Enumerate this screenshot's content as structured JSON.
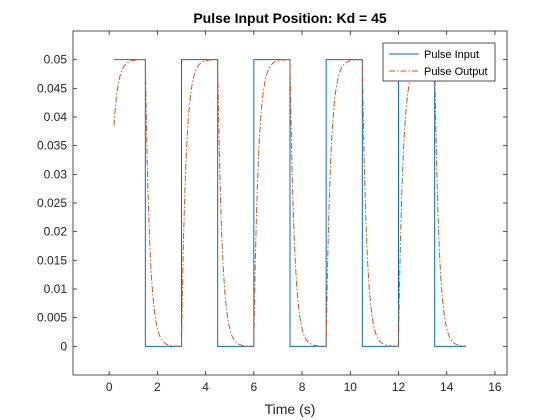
{
  "chart_data": {
    "type": "line",
    "title": "Pulse Input Position: Kd = 45",
    "xlabel": "Time (s)",
    "ylabel": "",
    "xlim": [
      -1.5,
      16.5
    ],
    "ylim": [
      -0.005,
      0.055
    ],
    "xticks": [
      "0",
      "2",
      "4",
      "6",
      "8",
      "10",
      "12",
      "14",
      "16"
    ],
    "xtick_values": [
      0,
      2,
      4,
      6,
      8,
      10,
      12,
      14,
      16
    ],
    "yticks": [
      "0",
      "0.005",
      "0.01",
      "0.015",
      "0.02",
      "0.025",
      "0.03",
      "0.035",
      "0.04",
      "0.045",
      "0.05"
    ],
    "ytick_values": [
      0,
      0.005,
      0.01,
      0.015,
      0.02,
      0.025,
      0.03,
      0.035,
      0.04,
      0.045,
      0.05
    ],
    "grid": false,
    "legend_position": "top-right",
    "series": [
      {
        "name": "Pulse Input",
        "style": "solid",
        "color": "#0072BD",
        "x": [
          0.2,
          1.5,
          1.5,
          3.0,
          3.0,
          4.5,
          4.5,
          6.0,
          6.0,
          7.5,
          7.5,
          9.0,
          9.0,
          10.5,
          10.5,
          12.0,
          12.0,
          13.5,
          13.5,
          14.8
        ],
        "y": [
          0.05,
          0.05,
          0,
          0,
          0.05,
          0.05,
          0,
          0,
          0.05,
          0.05,
          0,
          0,
          0.05,
          0.05,
          0,
          0,
          0.05,
          0.05,
          0,
          0
        ]
      },
      {
        "name": "Pulse Output",
        "style": "dashdot",
        "color": "#D95319",
        "high": 0.05,
        "low": 0,
        "initial": 0.0385,
        "tau": 0.18,
        "start": 0.2,
        "end": 14.8,
        "switch_times": [
          1.5,
          3.0,
          4.5,
          6.0,
          7.5,
          9.0,
          10.5,
          12.0,
          13.5
        ],
        "switch_levels": [
          0,
          0.05,
          0,
          0.05,
          0,
          0.05,
          0,
          0.05,
          0
        ]
      }
    ]
  }
}
